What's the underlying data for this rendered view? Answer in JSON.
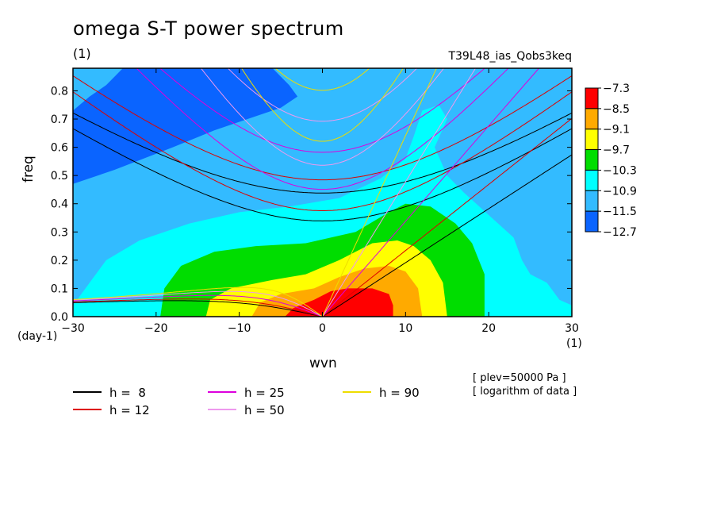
{
  "title": "omega S-T power spectrum",
  "subtitle": "(1)",
  "run_name": "T39L48_ias_Qobs3keq",
  "notes": [
    "[ plev=50000 Pa ]",
    "[ logarithm of data ]"
  ],
  "chart_data": {
    "type": "heatmap",
    "xlabel": "wvn",
    "ylabel": "freq",
    "x_unit": "(1)",
    "y_unit": "(day-1)",
    "xlim": [
      -30,
      30
    ],
    "ylim": [
      0,
      0.88
    ],
    "x_ticks": [
      -30,
      -20,
      -10,
      0,
      10,
      20,
      30
    ],
    "y_ticks": [
      0.0,
      0.1,
      0.2,
      0.3,
      0.4,
      0.5,
      0.6,
      0.7,
      0.8
    ],
    "colorbar": {
      "labels": [
        "-7.3",
        "-8.5",
        "-9.1",
        "-9.7",
        "-10.3",
        "-10.9",
        "-11.5",
        "-12.7"
      ],
      "colors": [
        "#ff0000",
        "#ffaa00",
        "#ffff00",
        "#00dd00",
        "#00ffff",
        "#33bbff",
        "#0a64ff"
      ]
    },
    "dispersion_curves": [
      {
        "label": "h =  8",
        "h": 8,
        "color": "#000000"
      },
      {
        "label": "h = 12",
        "h": 12,
        "color": "#dd0000"
      },
      {
        "label": "h = 25",
        "h": 25,
        "color": "#dd00dd"
      },
      {
        "label": "h = 50",
        "h": 50,
        "color": "#ee99ee"
      },
      {
        "label": "h = 90",
        "h": 90,
        "color": "#eedd00"
      }
    ]
  }
}
